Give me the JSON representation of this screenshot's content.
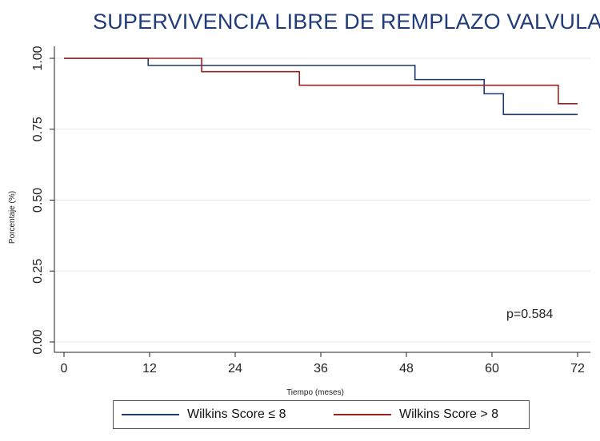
{
  "chart_data": {
    "type": "line",
    "title": "SUPERVIVENCIA LIBRE DE REMPLAZO VALVULAR",
    "xlabel": "Tiempo (meses)",
    "ylabel": "Porcentaje (%)",
    "xlim": [
      0,
      72
    ],
    "ylim": [
      0,
      1
    ],
    "xticks": [
      "0",
      "12",
      "24",
      "36",
      "48",
      "60",
      "72"
    ],
    "yticks": [
      "0.00",
      "0.25",
      "0.50",
      "0.75",
      "1.00"
    ],
    "grid": true,
    "step": true,
    "legend_position": "bottom",
    "annotation": "p=0.584",
    "series": [
      {
        "name": "Wilkins Score ≤ 8",
        "color": "#1f3a6e",
        "x": [
          0,
          11.8,
          49.2,
          58.9,
          61.6,
          72
        ],
        "y": [
          1.0,
          0.975,
          0.925,
          0.875,
          0.802,
          0.802
        ]
      },
      {
        "name": "Wilkins Score > 8",
        "color": "#a02020",
        "x": [
          0,
          19.3,
          33.0,
          69.3,
          72
        ],
        "y": [
          1.0,
          0.953,
          0.905,
          0.84,
          0.84
        ]
      }
    ]
  }
}
